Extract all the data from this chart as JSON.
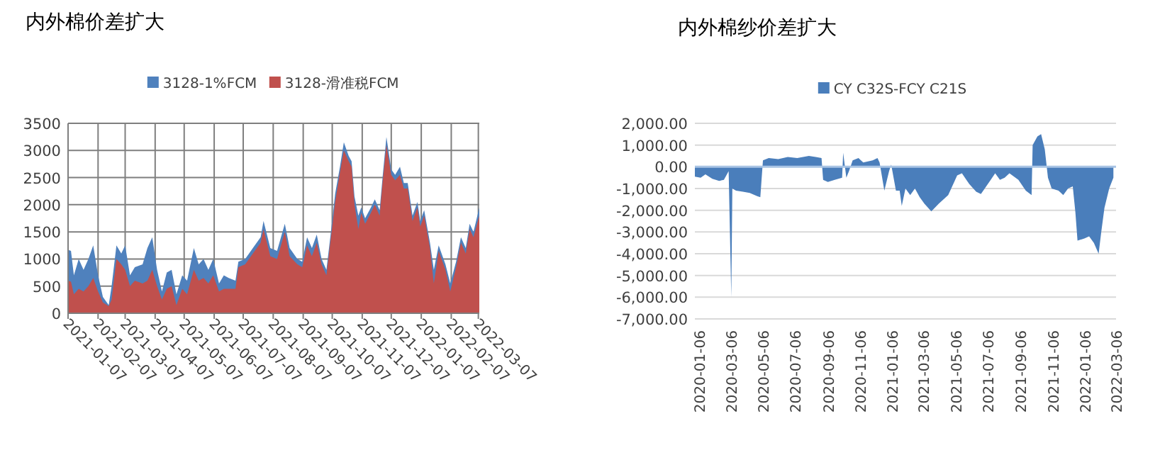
{
  "chart_data": [
    {
      "type": "area",
      "title": "内外棉价差扩大",
      "legend": "top",
      "grid": true,
      "x": [
        "2021-01-07",
        "2021-01-10",
        "2021-01-13",
        "2021-01-18",
        "2021-01-23",
        "2021-01-28",
        "2021-02-02",
        "2021-02-07",
        "2021-02-12",
        "2021-02-18",
        "2021-02-21",
        "2021-02-26",
        "2021-03-03",
        "2021-03-07",
        "2021-03-12",
        "2021-03-17",
        "2021-03-25",
        "2021-03-30",
        "2021-04-04",
        "2021-04-09",
        "2021-04-14",
        "2021-04-19",
        "2021-04-24",
        "2021-04-29",
        "2021-05-05",
        "2021-05-10",
        "2021-05-17",
        "2021-05-22",
        "2021-05-27",
        "2021-06-01",
        "2021-06-06",
        "2021-06-12",
        "2021-06-17",
        "2021-06-22",
        "2021-06-29",
        "2021-07-02",
        "2021-07-09",
        "2021-07-17",
        "2021-07-25",
        "2021-07-28",
        "2021-08-04",
        "2021-08-11",
        "2021-08-19",
        "2021-08-24",
        "2021-09-01",
        "2021-09-06",
        "2021-09-11",
        "2021-09-16",
        "2021-09-21",
        "2021-09-26",
        "2021-10-01",
        "2021-10-05",
        "2021-10-10",
        "2021-10-15",
        "2021-10-19",
        "2021-10-24",
        "2021-10-27",
        "2021-10-30",
        "2021-11-03",
        "2021-11-06",
        "2021-11-10",
        "2021-11-16",
        "2021-11-20",
        "2021-11-25",
        "2021-11-28",
        "2021-12-02",
        "2021-12-07",
        "2021-12-11",
        "2021-12-16",
        "2021-12-20",
        "2021-12-24",
        "2021-12-29",
        "2022-01-03",
        "2022-01-06",
        "2022-01-10",
        "2022-01-16",
        "2022-01-20",
        "2022-01-25",
        "2022-02-01",
        "2022-02-06",
        "2022-02-12",
        "2022-02-17",
        "2022-02-22",
        "2022-02-26",
        "2022-03-02",
        "2022-03-08"
      ],
      "series": [
        {
          "name": "3128-1%FCM",
          "color": "#4f81bd",
          "values": [
            1170,
            1150,
            700,
            1000,
            800,
            1000,
            1250,
            700,
            300,
            150,
            500,
            1250,
            1100,
            1250,
            700,
            850,
            900,
            1200,
            1400,
            800,
            400,
            750,
            800,
            350,
            700,
            600,
            1200,
            900,
            1000,
            800,
            1000,
            550,
            700,
            650,
            600,
            950,
            1000,
            1200,
            1400,
            1700,
            1200,
            1150,
            1650,
            1200,
            1000,
            950,
            1400,
            1200,
            1450,
            1000,
            800,
            1400,
            2200,
            2700,
            3150,
            2900,
            2800,
            2150,
            1800,
            1950,
            1750,
            1950,
            2100,
            1900,
            2500,
            3250,
            2650,
            2550,
            2700,
            2400,
            2400,
            1800,
            2050,
            1700,
            1900,
            1300,
            800,
            1250,
            900,
            550,
            950,
            1400,
            1200,
            1650,
            1500,
            1950
          ]
        },
        {
          "name": "3128-滑准税FCM",
          "color": "#c0504d",
          "values": [
            600,
            580,
            350,
            450,
            400,
            500,
            650,
            400,
            200,
            130,
            250,
            1000,
            900,
            800,
            500,
            600,
            550,
            600,
            800,
            500,
            250,
            450,
            500,
            150,
            450,
            350,
            800,
            600,
            650,
            550,
            700,
            400,
            450,
            450,
            450,
            850,
            900,
            1100,
            1300,
            1550,
            1050,
            1000,
            1500,
            1050,
            900,
            850,
            1250,
            1050,
            1300,
            900,
            700,
            1300,
            2050,
            2600,
            3000,
            2800,
            2700,
            2000,
            1550,
            1850,
            1650,
            1850,
            2000,
            1800,
            2400,
            3100,
            2550,
            2450,
            2550,
            2300,
            2300,
            1700,
            1950,
            1600,
            1800,
            1200,
            550,
            1150,
            800,
            400,
            850,
            1300,
            1100,
            1550,
            1400,
            1800
          ]
        }
      ],
      "xlim": [
        "2021-01-07",
        "2022-03-08"
      ],
      "xticks": [
        "2021-01-07",
        "2021-02-07",
        "2021-03-07",
        "2021-04-07",
        "2021-05-07",
        "2021-06-07",
        "2021-07-07",
        "2021-08-07",
        "2021-09-07",
        "2021-10-07",
        "2021-11-07",
        "2021-12-07",
        "2022-01-07",
        "2022-02-07",
        "2022-03-07"
      ],
      "ylim": [
        0,
        3500
      ],
      "yticks": [
        0,
        500,
        1000,
        1500,
        2000,
        2500,
        3000,
        3500
      ]
    },
    {
      "type": "area",
      "title": "内外棉纱价差扩大",
      "legend": "top",
      "grid": "y",
      "x": [
        "2019-12-29",
        "2020-01-09",
        "2020-01-18",
        "2020-01-31",
        "2020-02-13",
        "2020-02-22",
        "2020-03-02",
        "2020-03-07",
        "2020-03-09",
        "2020-03-16",
        "2020-03-29",
        "2020-04-11",
        "2020-04-25",
        "2020-05-01",
        "2020-05-06",
        "2020-05-17",
        "2020-06-04",
        "2020-06-22",
        "2020-07-10",
        "2020-08-01",
        "2020-08-14",
        "2020-08-25",
        "2020-08-28",
        "2020-09-06",
        "2020-09-19",
        "2020-10-03",
        "2020-10-05",
        "2020-10-11",
        "2020-10-16",
        "2020-10-23",
        "2020-11-03",
        "2020-11-12",
        "2020-11-30",
        "2020-12-09",
        "2020-12-13",
        "2020-12-22",
        "2020-12-31",
        "2021-01-04",
        "2021-01-13",
        "2021-01-20",
        "2021-01-24",
        "2021-01-31",
        "2021-02-09",
        "2021-02-18",
        "2021-02-27",
        "2021-03-08",
        "2021-03-21",
        "2021-04-04",
        "2021-04-22",
        "2021-05-09",
        "2021-05-18",
        "2021-06-01",
        "2021-06-14",
        "2021-06-23",
        "2021-07-06",
        "2021-07-20",
        "2021-07-29",
        "2021-08-07",
        "2021-08-16",
        "2021-09-02",
        "2021-09-16",
        "2021-09-27",
        "2021-09-29",
        "2021-10-08",
        "2021-10-15",
        "2021-10-22",
        "2021-10-28",
        "2021-11-04",
        "2021-11-17",
        "2021-11-26",
        "2021-12-05",
        "2021-12-14",
        "2021-12-19",
        "2021-12-23",
        "2022-01-05",
        "2022-01-14",
        "2022-01-23",
        "2022-02-01",
        "2022-02-06",
        "2022-02-12",
        "2022-02-21",
        "2022-03-01"
      ],
      "series": [
        {
          "name": "CY C32S-FCY C21S",
          "color": "#4a7ebb",
          "values": [
            -450,
            -500,
            -350,
            -550,
            -650,
            -600,
            -200,
            -6000,
            -1000,
            -1100,
            -1150,
            -1200,
            -1350,
            -1400,
            300,
            400,
            350,
            450,
            400,
            500,
            450,
            400,
            -600,
            -700,
            -600,
            -500,
            650,
            -500,
            -200,
            300,
            400,
            200,
            300,
            400,
            200,
            -1100,
            -200,
            100,
            -1100,
            -1100,
            -1800,
            -1000,
            -1300,
            -1000,
            -1400,
            -1700,
            -2050,
            -1700,
            -1300,
            -400,
            -300,
            -800,
            -1150,
            -1250,
            -800,
            -300,
            -600,
            -500,
            -300,
            -600,
            -1100,
            -1300,
            1000,
            1400,
            1500,
            800,
            -500,
            -1000,
            -1100,
            -1300,
            -1000,
            -900,
            -2100,
            -3400,
            -3300,
            -3200,
            -3500,
            -4000,
            -3000,
            -1900,
            -1000,
            -500
          ]
        }
      ],
      "xlim": [
        "2019-12-29",
        "2022-03-06"
      ],
      "ref_lines": [
        {
          "axis": "y",
          "value": 0,
          "color": "#a9c4e4"
        }
      ],
      "xticks": [
        "2020-01-06",
        "2020-03-06",
        "2020-05-06",
        "2020-07-06",
        "2020-09-06",
        "2020-11-06",
        "2021-01-06",
        "2021-03-06",
        "2021-05-06",
        "2021-07-06",
        "2021-09-06",
        "2021-11-06",
        "2022-01-06",
        "2022-03-06"
      ],
      "ylim": [
        -7000,
        2000
      ],
      "yticks": [
        {
          "value": -7000,
          "label": "-7,000.00"
        },
        {
          "value": -6000,
          "label": "-6,000.00"
        },
        {
          "value": -5000,
          "label": "-5,000.00"
        },
        {
          "value": -4000,
          "label": "-4,000.00"
        },
        {
          "value": -3000,
          "label": "-3,000.00"
        },
        {
          "value": -2000,
          "label": "-2,000.00"
        },
        {
          "value": -1000,
          "label": "-1,000.00"
        },
        {
          "value": 0,
          "label": "0.00"
        },
        {
          "value": 1000,
          "label": "1,000.00"
        },
        {
          "value": 2000,
          "label": "2,000.00"
        }
      ]
    }
  ]
}
